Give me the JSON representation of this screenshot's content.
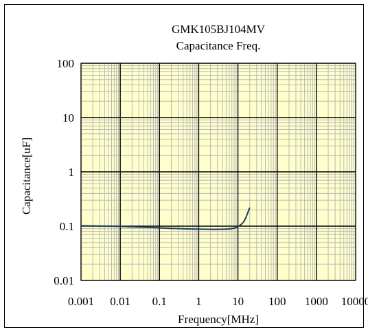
{
  "chart_data": {
    "type": "line",
    "title": "GMK105BJ104MV",
    "subtitle": "Capacitance Freq.",
    "xlabel": "Frequency[MHz]",
    "ylabel": "Capacitance[uF]",
    "x_scale": "log",
    "y_scale": "log",
    "xlim": [
      0.001,
      10000
    ],
    "ylim": [
      0.01,
      100
    ],
    "x_ticks": [
      "0.001",
      "0.01",
      "0.1",
      "1",
      "10",
      "100",
      "1000",
      "10000"
    ],
    "y_ticks": [
      "0.01",
      "0.1",
      "1",
      "10",
      "100"
    ],
    "grid": true,
    "legend": "none",
    "plot_background": "#ffffcc",
    "series": [
      {
        "color": "#1f3f5f",
        "x": [
          0.001,
          0.002,
          0.005,
          0.01,
          0.02,
          0.05,
          0.1,
          0.2,
          0.5,
          1,
          2,
          3,
          5,
          7,
          9,
          10,
          12,
          14,
          16,
          18,
          20
        ],
        "y": [
          0.102,
          0.101,
          0.1,
          0.099,
          0.097,
          0.095,
          0.093,
          0.091,
          0.089,
          0.088,
          0.087,
          0.087,
          0.088,
          0.09,
          0.094,
          0.098,
          0.107,
          0.12,
          0.145,
          0.18,
          0.22
        ]
      }
    ]
  }
}
